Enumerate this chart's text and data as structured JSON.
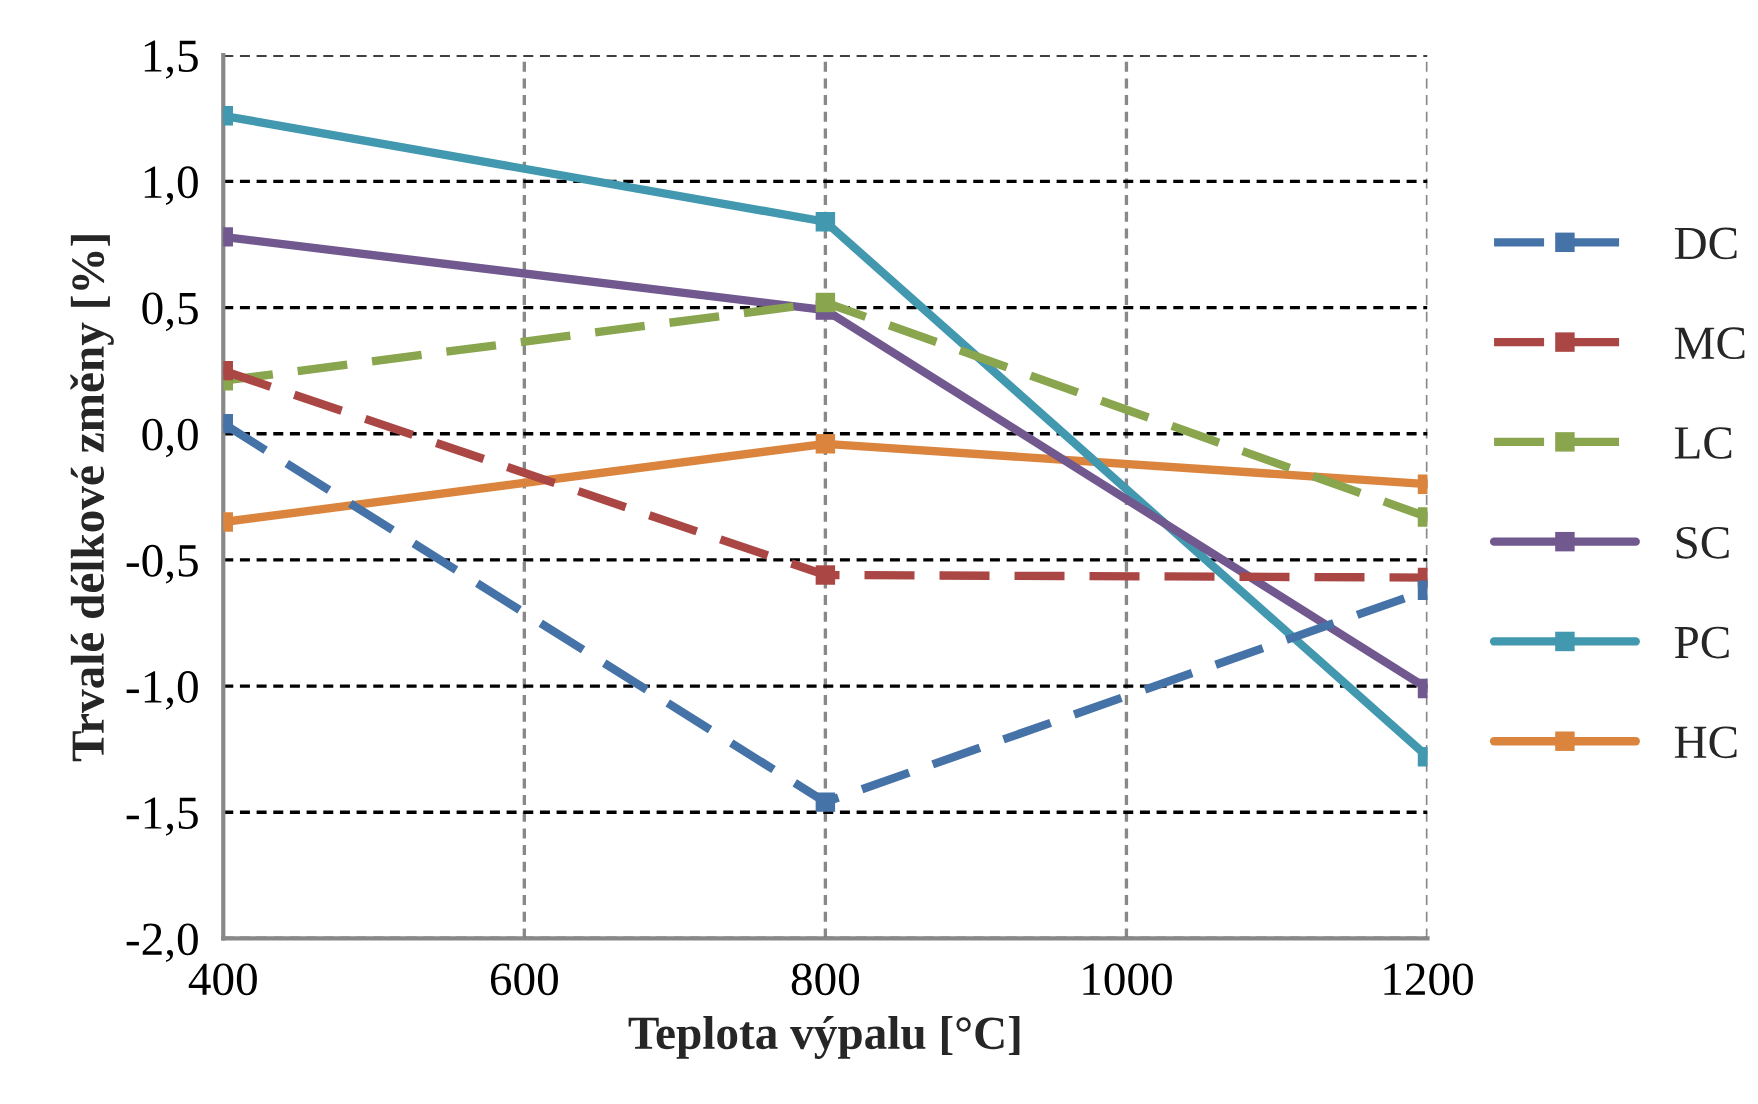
{
  "chart_data": {
    "type": "line",
    "xlabel": "Teplota výpalu [°C]",
    "ylabel": "Trvalé délkové změny [%]",
    "x": [
      400,
      800,
      1200
    ],
    "series": [
      {
        "name": "DC",
        "color": "#4572a7",
        "line_style": "dashed",
        "values": [
          0.04,
          -1.46,
          -0.62
        ]
      },
      {
        "name": "MC",
        "color": "#aa4643",
        "line_style": "dashed",
        "values": [
          0.25,
          -0.56,
          -0.57
        ]
      },
      {
        "name": "LC",
        "color": "#89a54e",
        "line_style": "dashed",
        "values": [
          0.21,
          0.52,
          -0.33
        ]
      },
      {
        "name": "SC",
        "color": "#71588f",
        "line_style": "solid",
        "values": [
          0.78,
          0.49,
          -1.01
        ]
      },
      {
        "name": "PC",
        "color": "#4198af",
        "line_style": "solid",
        "values": [
          1.26,
          0.84,
          -1.28
        ]
      },
      {
        "name": "HC",
        "color": "#db843d",
        "line_style": "solid",
        "values": [
          -0.35,
          -0.04,
          -0.2
        ]
      }
    ],
    "xlim": [
      400,
      1200
    ],
    "xticks": [
      400,
      600,
      800,
      1000,
      1200
    ],
    "ylim": [
      -2.0,
      1.5
    ],
    "yticks": [
      {
        "value": -2.0,
        "label": "-2,0"
      },
      {
        "value": -1.5,
        "label": "-1,5"
      },
      {
        "value": -1.0,
        "label": "-1,0"
      },
      {
        "value": -0.5,
        "label": "-0,5"
      },
      {
        "value": 0.0,
        "label": "0,0"
      },
      {
        "value": 0.5,
        "label": "0,5"
      },
      {
        "value": 1.0,
        "label": "1,0"
      },
      {
        "value": 1.5,
        "label": "1,5"
      }
    ],
    "grid": true,
    "legend": "right",
    "marker": "square"
  }
}
